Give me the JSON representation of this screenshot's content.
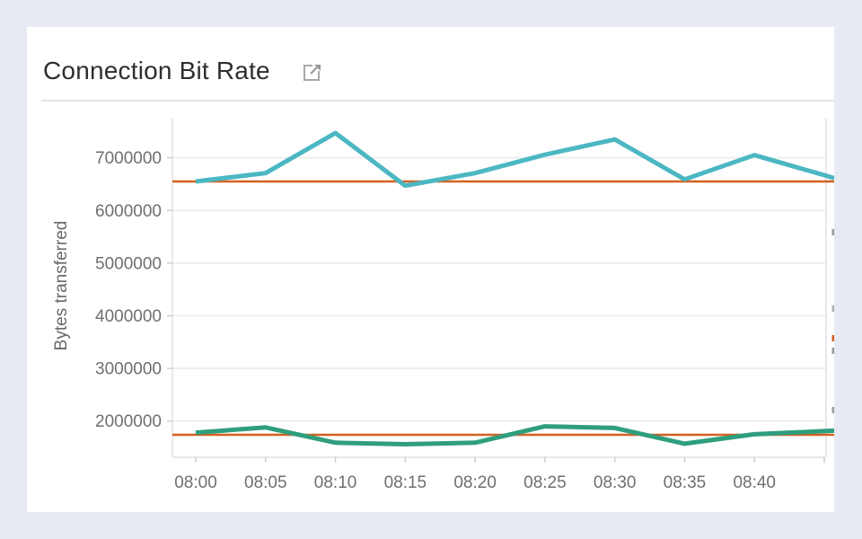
{
  "card": {
    "title": "Connection Bit Rate",
    "title_icon": "external-link-icon"
  },
  "colors": {
    "page_background": "#e7eaf2",
    "card_background": "#ffffff",
    "title_text": "#2e2e2e",
    "tick_text": "#6f6f6f",
    "axis_label_text": "#686868",
    "gridline": "#efefef",
    "axis_line": "#e0e0e0",
    "tick_mark": "#cfcfcf",
    "series_teal": "#4bb7c3",
    "series_green": "#2f9e7e",
    "reference_orange": "#d2611e"
  },
  "chart_data": {
    "type": "line",
    "title": "Connection Bit Rate",
    "ylabel": "Bytes transferred",
    "xlabel": "",
    "x_tick_labels": [
      "08:00",
      "08:05",
      "08:10",
      "08:15",
      "08:20",
      "08:25",
      "08:30",
      "08:35",
      "08:40"
    ],
    "extra_unlabeled_x_ticks": 1,
    "y_ticks": [
      2000000,
      3000000,
      4000000,
      5000000,
      6000000,
      7000000
    ],
    "ylim": [
      1313000,
      7745000
    ],
    "grid": "horizontal",
    "legend": "none",
    "series": [
      {
        "name": "teal-series",
        "color": "#4bb7c3",
        "values": [
          6550000,
          6710000,
          7470000,
          6470000,
          6710000,
          7060000,
          7350000,
          6590000,
          7050000,
          6670000
        ]
      },
      {
        "name": "green-series",
        "color": "#2f9e7e",
        "values": [
          1780000,
          1880000,
          1590000,
          1560000,
          1590000,
          1900000,
          1870000,
          1570000,
          1750000,
          1810000
        ]
      }
    ],
    "reference_lines": [
      {
        "name": "upper-threshold",
        "value": 6550000,
        "color": "#d2611e"
      },
      {
        "name": "lower-threshold",
        "value": 1740000,
        "color": "#d2611e"
      }
    ]
  }
}
